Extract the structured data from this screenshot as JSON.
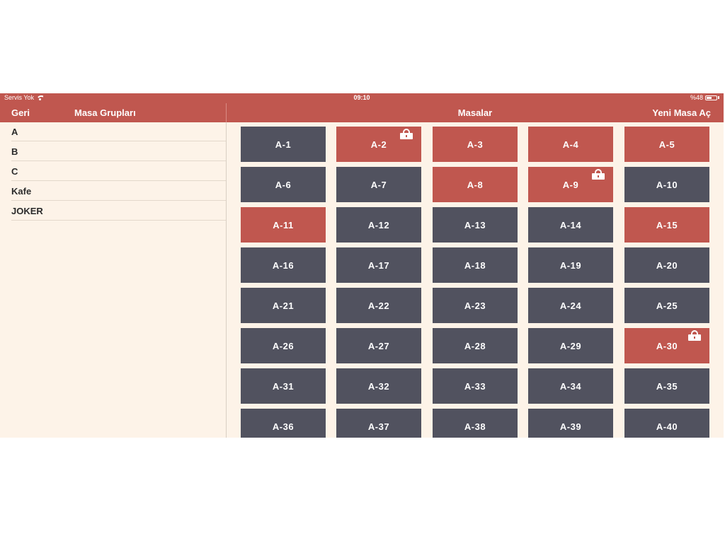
{
  "status_bar": {
    "carrier": "Servis Yok",
    "time": "09:10",
    "battery": "%48"
  },
  "left_nav": {
    "back_label": "Geri",
    "title": "Masa Grupları"
  },
  "right_nav": {
    "title": "Masalar",
    "add_label": "Yeni Masa Aç"
  },
  "groups": [
    "A",
    "B",
    "C",
    "Kafe",
    "JOKER"
  ],
  "colors": {
    "accent": "#c0574f",
    "free_table": "#51525f",
    "background": "#fdf3e8"
  },
  "tables": [
    {
      "label": "A-1",
      "state": "free",
      "locked": false
    },
    {
      "label": "A-2",
      "state": "busy",
      "locked": true
    },
    {
      "label": "A-3",
      "state": "busy",
      "locked": false
    },
    {
      "label": "A-4",
      "state": "busy",
      "locked": false
    },
    {
      "label": "A-5",
      "state": "busy",
      "locked": false
    },
    {
      "label": "A-6",
      "state": "free",
      "locked": false
    },
    {
      "label": "A-7",
      "state": "free",
      "locked": false
    },
    {
      "label": "A-8",
      "state": "busy",
      "locked": false
    },
    {
      "label": "A-9",
      "state": "busy",
      "locked": true
    },
    {
      "label": "A-10",
      "state": "free",
      "locked": false
    },
    {
      "label": "A-11",
      "state": "busy",
      "locked": false
    },
    {
      "label": "A-12",
      "state": "free",
      "locked": false
    },
    {
      "label": "A-13",
      "state": "free",
      "locked": false
    },
    {
      "label": "A-14",
      "state": "free",
      "locked": false
    },
    {
      "label": "A-15",
      "state": "busy",
      "locked": false
    },
    {
      "label": "A-16",
      "state": "free",
      "locked": false
    },
    {
      "label": "A-17",
      "state": "free",
      "locked": false
    },
    {
      "label": "A-18",
      "state": "free",
      "locked": false
    },
    {
      "label": "A-19",
      "state": "free",
      "locked": false
    },
    {
      "label": "A-20",
      "state": "free",
      "locked": false
    },
    {
      "label": "A-21",
      "state": "free",
      "locked": false
    },
    {
      "label": "A-22",
      "state": "free",
      "locked": false
    },
    {
      "label": "A-23",
      "state": "free",
      "locked": false
    },
    {
      "label": "A-24",
      "state": "free",
      "locked": false
    },
    {
      "label": "A-25",
      "state": "free",
      "locked": false
    },
    {
      "label": "A-26",
      "state": "free",
      "locked": false
    },
    {
      "label": "A-27",
      "state": "free",
      "locked": false
    },
    {
      "label": "A-28",
      "state": "free",
      "locked": false
    },
    {
      "label": "A-29",
      "state": "free",
      "locked": false
    },
    {
      "label": "A-30",
      "state": "busy",
      "locked": true
    },
    {
      "label": "A-31",
      "state": "free",
      "locked": false
    },
    {
      "label": "A-32",
      "state": "free",
      "locked": false
    },
    {
      "label": "A-33",
      "state": "free",
      "locked": false
    },
    {
      "label": "A-34",
      "state": "free",
      "locked": false
    },
    {
      "label": "A-35",
      "state": "free",
      "locked": false
    },
    {
      "label": "A-36",
      "state": "free",
      "locked": false
    },
    {
      "label": "A-37",
      "state": "free",
      "locked": false
    },
    {
      "label": "A-38",
      "state": "free",
      "locked": false
    },
    {
      "label": "A-39",
      "state": "free",
      "locked": false
    },
    {
      "label": "A-40",
      "state": "free",
      "locked": false
    }
  ]
}
